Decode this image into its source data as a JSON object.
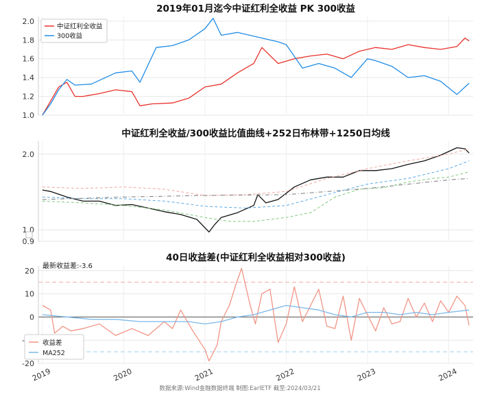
{
  "chart_data": [
    {
      "type": "line",
      "title": "2019年01月迄今中证红利全收益 PK 300收益",
      "ylim": [
        1.0,
        2.05
      ],
      "yticks": [
        "1.0",
        "1.2",
        "1.4",
        "1.6",
        "1.8",
        "2.0"
      ],
      "grid": true,
      "legend": "top-left",
      "series": [
        {
          "name": "中证红利全收益",
          "color": "#e8312a",
          "x": [
            2019.0,
            2019.1,
            2019.2,
            2019.3,
            2019.4,
            2019.5,
            2019.7,
            2019.9,
            2020.1,
            2020.2,
            2020.35,
            2020.6,
            2020.8,
            2021.0,
            2021.2,
            2021.4,
            2021.6,
            2021.7,
            2021.9,
            2022.1,
            2022.3,
            2022.5,
            2022.7,
            2022.9,
            2023.1,
            2023.3,
            2023.5,
            2023.7,
            2023.9,
            2024.1,
            2024.2,
            2024.25
          ],
          "values": [
            1.0,
            1.15,
            1.3,
            1.35,
            1.2,
            1.2,
            1.23,
            1.27,
            1.25,
            1.1,
            1.12,
            1.13,
            1.18,
            1.3,
            1.33,
            1.45,
            1.55,
            1.72,
            1.55,
            1.6,
            1.63,
            1.65,
            1.6,
            1.68,
            1.72,
            1.7,
            1.75,
            1.72,
            1.7,
            1.73,
            1.82,
            1.79
          ]
        },
        {
          "name": "300收益",
          "color": "#1f8ce6",
          "x": [
            2019.0,
            2019.1,
            2019.2,
            2019.3,
            2019.4,
            2019.6,
            2019.9,
            2020.1,
            2020.2,
            2020.4,
            2020.6,
            2020.8,
            2021.0,
            2021.1,
            2021.2,
            2021.4,
            2021.7,
            2021.9,
            2022.0,
            2022.2,
            2022.4,
            2022.6,
            2022.8,
            2023.0,
            2023.1,
            2023.3,
            2023.5,
            2023.7,
            2023.9,
            2024.1,
            2024.2,
            2024.25
          ],
          "values": [
            1.0,
            1.12,
            1.27,
            1.38,
            1.32,
            1.33,
            1.45,
            1.47,
            1.35,
            1.72,
            1.74,
            1.8,
            1.92,
            2.03,
            1.85,
            1.88,
            1.82,
            1.78,
            1.75,
            1.5,
            1.55,
            1.5,
            1.4,
            1.6,
            1.58,
            1.52,
            1.4,
            1.42,
            1.36,
            1.22,
            1.3,
            1.34
          ]
        }
      ]
    },
    {
      "type": "line",
      "title": "中证红利全收益/300收益比值曲线+252日布林带+1250日均线",
      "scale": "log",
      "ylim": [
        0.9,
        2.25
      ],
      "yticks": [
        "0.9",
        "1.0",
        "2.0"
      ],
      "grid": true,
      "series": [
        {
          "color": "#111111",
          "x": [
            2019.0,
            2019.1,
            2019.3,
            2019.5,
            2019.7,
            2019.9,
            2020.1,
            2020.3,
            2020.5,
            2020.7,
            2020.9,
            2021.05,
            2021.12,
            2021.2,
            2021.4,
            2021.6,
            2021.65,
            2021.75,
            2021.9,
            2022.1,
            2022.3,
            2022.5,
            2022.7,
            2022.9,
            2023.1,
            2023.3,
            2023.5,
            2023.7,
            2023.9,
            2024.1,
            2024.2,
            2024.25
          ],
          "values": [
            1.44,
            1.42,
            1.35,
            1.3,
            1.3,
            1.25,
            1.26,
            1.22,
            1.18,
            1.15,
            1.1,
            0.98,
            1.05,
            1.12,
            1.17,
            1.25,
            1.38,
            1.28,
            1.32,
            1.48,
            1.58,
            1.62,
            1.62,
            1.72,
            1.72,
            1.75,
            1.82,
            1.88,
            1.98,
            2.12,
            2.1,
            2.02
          ]
        },
        {
          "color": "#f2a79e",
          "x": [
            2019.0,
            2019.5,
            2020.0,
            2020.5,
            2021.0,
            2021.5,
            2022.0,
            2022.5,
            2023.0,
            2023.5,
            2024.0,
            2024.25
          ],
          "values": [
            1.48,
            1.46,
            1.48,
            1.45,
            1.37,
            1.38,
            1.42,
            1.6,
            1.75,
            1.88,
            2.0,
            2.1
          ]
        },
        {
          "color": "#7fc97f",
          "x": [
            2019.0,
            2019.5,
            2020.0,
            2020.5,
            2021.0,
            2021.3,
            2021.6,
            2022.0,
            2022.3,
            2022.6,
            2022.9,
            2023.2,
            2023.5,
            2023.8,
            2024.0,
            2024.25
          ],
          "values": [
            1.3,
            1.28,
            1.25,
            1.2,
            1.12,
            1.08,
            1.08,
            1.12,
            1.17,
            1.35,
            1.45,
            1.47,
            1.55,
            1.6,
            1.62,
            1.7
          ]
        },
        {
          "color": "#5aa9e6",
          "x": [
            2019.0,
            2019.5,
            2020.0,
            2020.5,
            2021.0,
            2021.5,
            2022.0,
            2022.5,
            2023.0,
            2023.5,
            2024.0,
            2024.25
          ],
          "values": [
            1.35,
            1.33,
            1.33,
            1.3,
            1.24,
            1.22,
            1.25,
            1.38,
            1.52,
            1.6,
            1.75,
            1.88
          ]
        },
        {
          "color": "#7a7a7a",
          "x": [
            2019.0,
            2020.0,
            2021.0,
            2022.0,
            2023.0,
            2024.0,
            2024.25
          ],
          "values": [
            1.32,
            1.35,
            1.37,
            1.38,
            1.46,
            1.58,
            1.6
          ]
        }
      ]
    },
    {
      "type": "line",
      "title": "40日收益差(中证红利全收益相对300收益)",
      "annotation": "最新收益差:-3.6",
      "ylim": [
        -20,
        22
      ],
      "yticks": [
        "-20",
        "-10",
        "0",
        "10",
        "20"
      ],
      "xticks": [
        "2019",
        "2020",
        "2021",
        "2022",
        "2023",
        "2024"
      ],
      "hlines": [
        15,
        -15
      ],
      "grid": true,
      "legend": "bottom-left",
      "series": [
        {
          "name": "收益差",
          "color": "#f19484",
          "x": [
            2019.0,
            2019.1,
            2019.15,
            2019.25,
            2019.35,
            2019.5,
            2019.7,
            2019.9,
            2020.1,
            2020.3,
            2020.5,
            2020.6,
            2020.7,
            2020.85,
            2021.0,
            2021.05,
            2021.15,
            2021.2,
            2021.3,
            2021.38,
            2021.45,
            2021.55,
            2021.62,
            2021.7,
            2021.8,
            2021.9,
            2022.0,
            2022.1,
            2022.2,
            2022.3,
            2022.4,
            2022.5,
            2022.6,
            2022.7,
            2022.8,
            2022.9,
            2023.0,
            2023.1,
            2023.2,
            2023.3,
            2023.4,
            2023.5,
            2023.6,
            2023.7,
            2023.8,
            2023.9,
            2024.0,
            2024.1,
            2024.2,
            2024.25
          ],
          "values": [
            5,
            3,
            -7,
            -4,
            -6,
            -5,
            -3,
            -8,
            -5,
            -8,
            -2,
            -5,
            3,
            -6,
            -14,
            -19,
            -12,
            -2,
            5,
            14,
            21,
            6,
            -3,
            10,
            12,
            -11,
            -3,
            13,
            -2,
            5,
            12,
            -4,
            -5,
            9,
            -10,
            8,
            1,
            -6,
            4,
            -3,
            -2,
            8,
            0,
            6,
            -2,
            7,
            2,
            9,
            5,
            -3.6
          ]
        },
        {
          "name": "MA252",
          "color": "#7ab7e8",
          "x": [
            2019.0,
            2019.3,
            2019.6,
            2019.9,
            2020.2,
            2020.5,
            2020.8,
            2021.0,
            2021.2,
            2021.4,
            2021.6,
            2021.8,
            2022.0,
            2022.2,
            2022.4,
            2022.6,
            2022.8,
            2023.0,
            2023.2,
            2023.4,
            2023.6,
            2023.8,
            2024.0,
            2024.25
          ],
          "values": [
            1,
            0,
            -1,
            -1,
            -2,
            -2,
            -2,
            -3,
            -2,
            0,
            1,
            3,
            5,
            4,
            3,
            1,
            0,
            2,
            2,
            1,
            2,
            1,
            2,
            3
          ]
        }
      ]
    }
  ],
  "footer": {
    "source": "数据来源:Wind金融数据终端  制图:EarlETF 截至:2024/03/21"
  }
}
